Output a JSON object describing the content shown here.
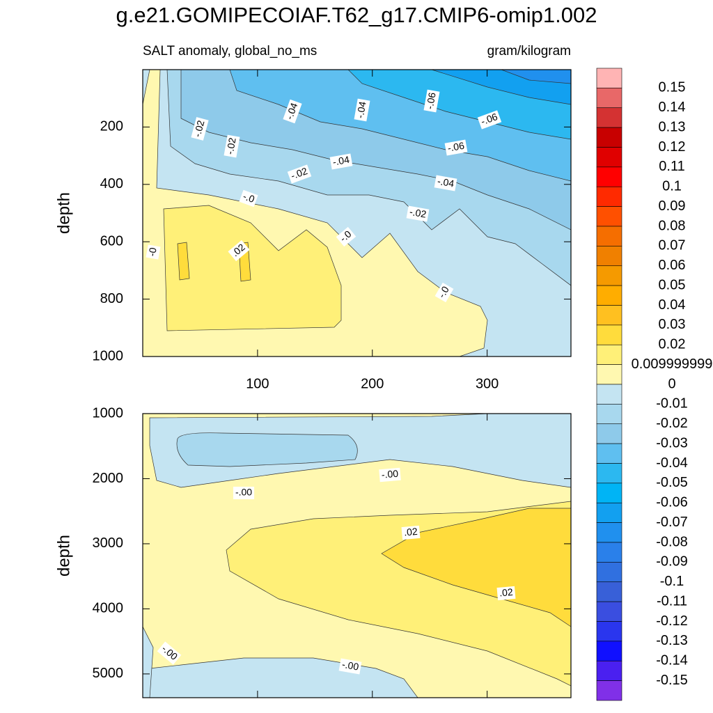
{
  "title": "g.e21.GOMIPECOIAF.T62_g17.CMIP6-omip1.002",
  "left_string": "SALT anomaly, global_no_ms",
  "right_string": "gram/kilogram",
  "chart_data": [
    {
      "type": "contour",
      "y_label": "depth",
      "y_reversed": true,
      "xlim": [
        0,
        373
      ],
      "xticks": [
        100,
        200,
        300
      ],
      "ylim": [
        0,
        1000
      ],
      "yticks": [
        200,
        400,
        600,
        800,
        1000
      ],
      "annotations": [
        "-.02",
        "-.02",
        "-.04",
        "-.04",
        "-.06",
        "-.06",
        "-.06",
        "-.04",
        "-.02",
        "-.04",
        "-.0",
        "-.02",
        "-.0",
        ".02",
        "-0",
        "-.0"
      ]
    },
    {
      "type": "contour",
      "y_label": "depth",
      "y_reversed": true,
      "xlim": [
        0,
        373
      ],
      "xticks": [
        100,
        200,
        300
      ],
      "ylim": [
        1000,
        5365
      ],
      "yticks": [
        1000,
        2000,
        3000,
        4000,
        5000
      ],
      "annotations": [
        "-.00",
        "-.00",
        ".02",
        ".02",
        "-.00",
        "-.00"
      ]
    }
  ],
  "colorbar": {
    "levels": [
      0.15,
      0.14,
      0.13,
      0.12,
      0.11,
      0.1,
      0.09,
      0.08,
      0.07,
      0.06,
      0.05,
      0.04,
      0.03,
      0.02,
      0.009999999,
      0,
      -0.01,
      -0.02,
      -0.03,
      -0.04,
      -0.05,
      -0.06,
      -0.07,
      -0.08,
      -0.09,
      -0.1,
      -0.11,
      -0.12,
      -0.13,
      -0.14,
      -0.15
    ],
    "colors": [
      "#ffb4b4",
      "#e86868",
      "#d43232",
      "#c80000",
      "#e00000",
      "#ff0000",
      "#ff2a00",
      "#ff5000",
      "#f56e00",
      "#f08000",
      "#f59a00",
      "#ffad00",
      "#ffc020",
      "#ffdc3c",
      "#fff078",
      "#fff8b0",
      "#c4e4f2",
      "#a8d8ee",
      "#8ecaea",
      "#5fbff0",
      "#2cb8f0",
      "#00b4f5",
      "#12a0f0",
      "#2090ee",
      "#2a80ea",
      "#3070e0",
      "#3860d8",
      "#3a4ee0",
      "#2a36ee",
      "#1010ff",
      "#4a20f0",
      "#8030e8"
    ]
  }
}
